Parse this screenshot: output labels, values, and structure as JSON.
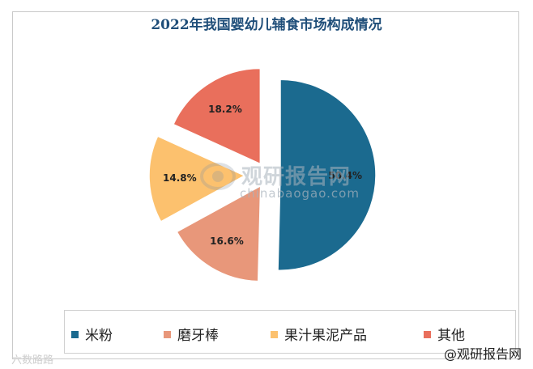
{
  "chart_data": {
    "type": "pie",
    "title": "2022年我国婴幼儿辅食市场构成情况",
    "slices": [
      {
        "label": "米粉",
        "value": 50.4,
        "value_label": "50.4%",
        "color": "#1b6a8f"
      },
      {
        "label": "磨牙棒",
        "value": 16.6,
        "value_label": "16.6%",
        "color": "#e8977a"
      },
      {
        "label": "果汁果泥产品",
        "value": 14.8,
        "value_label": "14.8%",
        "color": "#fcc16e"
      },
      {
        "label": "其他",
        "value": 18.2,
        "value_label": "18.2%",
        "color": "#e96f5c"
      }
    ],
    "legend_position": "bottom"
  },
  "watermark": {
    "brand": "观研报告网",
    "site": "chinabaogao.com"
  },
  "corner_left_text": "六数路路",
  "corner_right_text": "@观研报告网"
}
